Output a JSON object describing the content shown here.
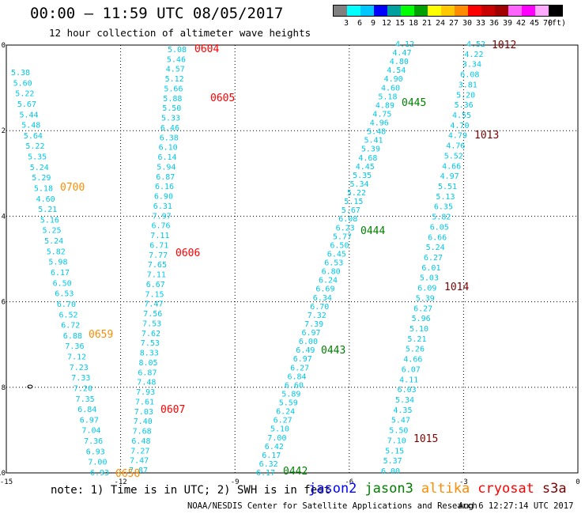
{
  "header": {
    "title": "00:00 — 11:59 UTC 08/05/2017",
    "subtitle": "12 hour collection of altimeter wave heights"
  },
  "legend": {
    "colors": [
      "#808080",
      "#00ffff",
      "#00c8ff",
      "#0000ff",
      "#00a0a0",
      "#00ff00",
      "#00a000",
      "#ffff00",
      "#ffc800",
      "#ff8c00",
      "#ff0000",
      "#c80000",
      "#a00000",
      "#ff64ff",
      "#ff00ff",
      "#ffaaff",
      "#000000"
    ],
    "labels": [
      "3",
      "6",
      "9",
      "12",
      "15",
      "18",
      "21",
      "24",
      "27",
      "30",
      "33",
      "36",
      "39",
      "42",
      "45",
      "70",
      "(ft)"
    ]
  },
  "map": {
    "lon_range": [
      -15,
      0
    ],
    "lat_range": [
      -10,
      0
    ],
    "x_ticks": [
      "-15",
      "-12",
      "-9",
      "-6",
      "-3",
      "0"
    ],
    "y_ticks": [
      "0",
      "-2",
      "-4",
      "-6",
      "-8",
      "-10"
    ]
  },
  "passes": [
    {
      "id": "0604",
      "satellite": "cryosat",
      "color": "#ff0000"
    },
    {
      "id": "0605",
      "satellite": "cryosat",
      "color": "#ff0000"
    },
    {
      "id": "0606",
      "satellite": "cryosat",
      "color": "#ff0000"
    },
    {
      "id": "0607",
      "satellite": "cryosat",
      "color": "#ff0000"
    },
    {
      "id": "0700",
      "satellite": "altika",
      "color": "#ff8c00"
    },
    {
      "id": "0659",
      "satellite": "altika",
      "color": "#ff8c00"
    },
    {
      "id": "0658",
      "satellite": "altika",
      "color": "#ff8c00"
    },
    {
      "id": "0445",
      "satellite": "jason3",
      "color": "#008000"
    },
    {
      "id": "0444",
      "satellite": "jason3",
      "color": "#008000"
    },
    {
      "id": "0443",
      "satellite": "jason3",
      "color": "#008000"
    },
    {
      "id": "0442",
      "satellite": "jason3",
      "color": "#008000"
    },
    {
      "id": "1012",
      "satellite": "s3a",
      "color": "#800000"
    },
    {
      "id": "1013",
      "satellite": "s3a",
      "color": "#800000"
    },
    {
      "id": "1014",
      "satellite": "s3a",
      "color": "#800000"
    },
    {
      "id": "1015",
      "satellite": "s3a",
      "color": "#800000"
    }
  ],
  "tracks": {
    "track1": [
      "5.38",
      "5.60",
      "5.22",
      "5.67",
      "5.44",
      "5.48",
      "5.64",
      "5.22",
      "5.35",
      "5.24",
      "5.29",
      "5.18",
      "4.60",
      "5.21",
      "5.16",
      "5.25",
      "5.24",
      "5.82",
      "5.98",
      "6.17",
      "6.50",
      "6.53",
      "6.70",
      "6.52",
      "6.72",
      "6.88",
      "7.36",
      "7.12",
      "7.23",
      "7.33",
      "7.20",
      "7.35",
      "6.84",
      "6.97",
      "7.04",
      "7.36",
      "6.93",
      "7.00",
      "6.93"
    ],
    "track2": [
      "5.08",
      "5.46",
      "4.57",
      "5.12",
      "5.66",
      "5.88",
      "5.50",
      "5.33",
      "6.46",
      "6.38",
      "6.10",
      "6.14",
      "5.94",
      "6.87",
      "6.16",
      "6.90",
      "6.31",
      "7.97",
      "6.76",
      "7.11",
      "6.71",
      "7.77",
      "7.65",
      "7.11",
      "6.67",
      "7.15",
      "7.47",
      "7.56",
      "7.53",
      "7.62",
      "7.53",
      "8.33",
      "8.05",
      "6.87",
      "7.48",
      "7.93",
      "7.61",
      "7.03",
      "7.40",
      "7.68",
      "6.48",
      "7.27",
      "7.47",
      "7.87"
    ],
    "track3": [
      "4.12",
      "4.47",
      "4.80",
      "4.54",
      "4.90",
      "4.60",
      "5.18",
      "4.89",
      "4.75",
      "4.96",
      "5.48",
      "5.41",
      "5.39",
      "4.68",
      "4.45",
      "5.35",
      "5.34",
      "5.22",
      "5.15",
      "5.67",
      "6.08",
      "6.23",
      "5.77",
      "6.50",
      "6.45",
      "6.53",
      "6.80",
      "6.24",
      "6.69",
      "6.34",
      "6.70",
      "7.32",
      "7.39",
      "6.97",
      "6.00",
      "6.49",
      "6.97",
      "6.27",
      "6.84",
      "6.60",
      "5.89",
      "5.59",
      "6.24",
      "6.27",
      "5.10",
      "7.00",
      "6.42",
      "6.17",
      "6.32",
      "6.17"
    ],
    "track4": [
      "4.52",
      "4.22",
      "3.34",
      "6.08",
      "3.81",
      "5.20",
      "5.36",
      "4.55",
      "4.70",
      "4.79",
      "4.76",
      "5.52",
      "4.66",
      "4.97",
      "5.51",
      "5.13",
      "6.35",
      "5.82",
      "6.05",
      "6.66",
      "5.24",
      "6.27",
      "6.01",
      "5.03",
      "6.09",
      "5.39",
      "6.27",
      "5.96",
      "5.10",
      "5.21",
      "5.26",
      "4.66",
      "6.07",
      "4.11",
      "6.03",
      "5.34",
      "4.35",
      "5.47",
      "5.50",
      "7.10",
      "5.15",
      "5.37",
      "6.00"
    ]
  },
  "note": "note: 1) Time is in UTC; 2) SWH is in feet",
  "satellites": [
    {
      "name": "jason2",
      "color": "#0000ff"
    },
    {
      "name": "jason3",
      "color": "#008000"
    },
    {
      "name": "altika",
      "color": "#ff8c00"
    },
    {
      "name": "cryosat",
      "color": "#ff0000"
    },
    {
      "name": "s3a",
      "color": "#800000"
    }
  ],
  "footer": {
    "credit": "NOAA/NESDIS Center for Satellite Applications and Research",
    "timestamp": "Aug  6 12:27:14 UTC 2017"
  },
  "track_color": "#00c8e6"
}
